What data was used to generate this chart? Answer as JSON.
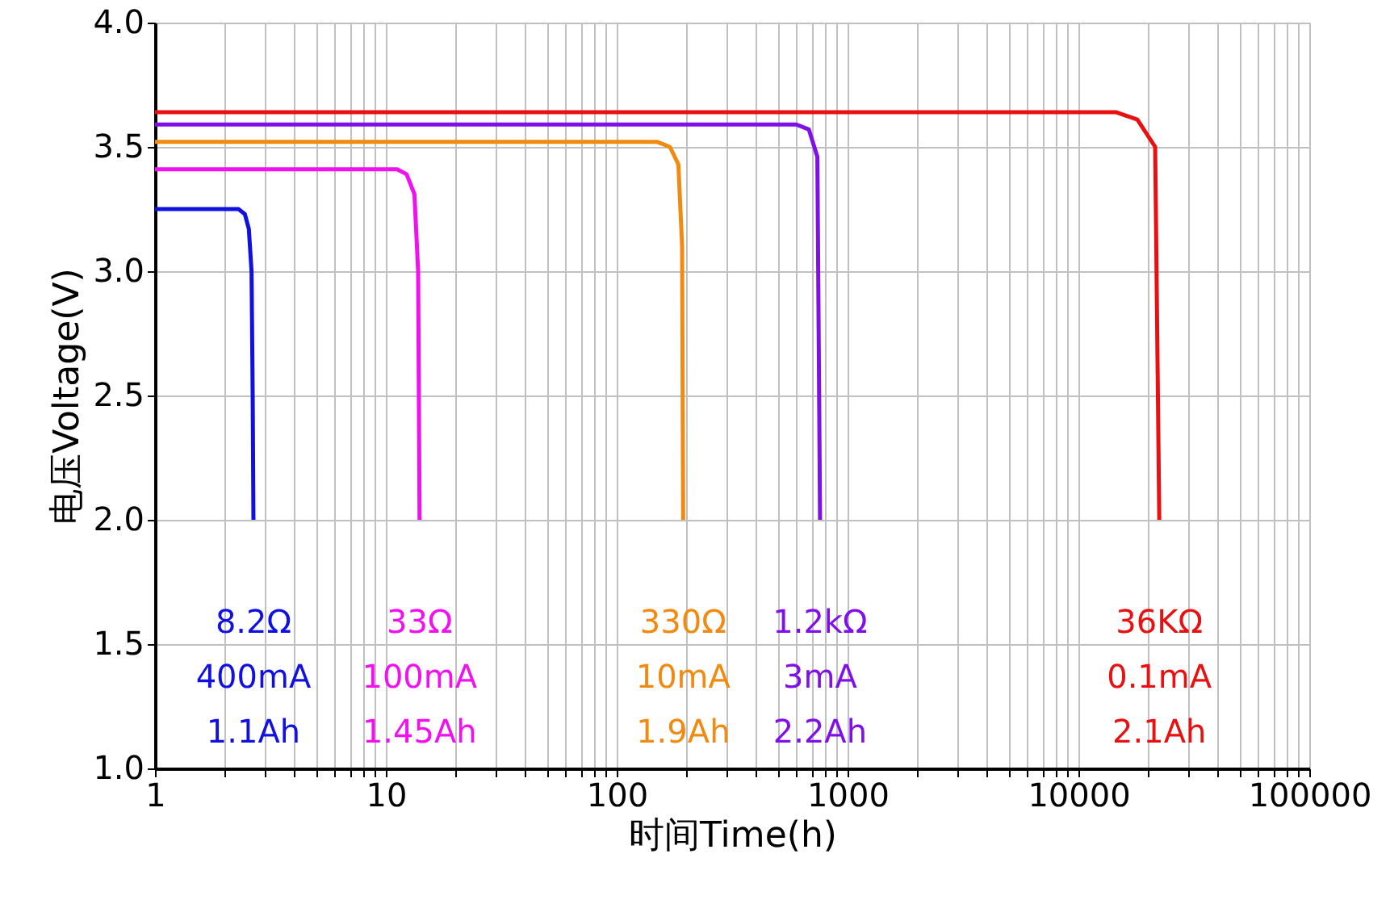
{
  "chart_data": {
    "type": "line",
    "xlabel": "时间Time(h)",
    "ylabel": "电压Voltage(V)",
    "log": "x",
    "xlim": [
      1,
      100000
    ],
    "ylim": [
      1.0,
      4.0
    ],
    "xticks": [
      1,
      {
        "value": 2,
        "label": null
      },
      {
        "value": 3,
        "label": null
      },
      {
        "value": 4,
        "label": null
      },
      {
        "value": 5,
        "label": null
      },
      {
        "value": 6,
        "label": null
      },
      {
        "value": 7,
        "label": null
      },
      {
        "value": 8,
        "label": null
      },
      {
        "value": 9,
        "label": null
      },
      10,
      {
        "value": 20,
        "label": null
      },
      {
        "value": 30,
        "label": null
      },
      {
        "value": 40,
        "label": null
      },
      {
        "value": 50,
        "label": null
      },
      {
        "value": 60,
        "label": null
      },
      {
        "value": 70,
        "label": null
      },
      {
        "value": 80,
        "label": null
      },
      {
        "value": 90,
        "label": null
      },
      100,
      {
        "value": 200,
        "label": null
      },
      {
        "value": 300,
        "label": null
      },
      {
        "value": 400,
        "label": null
      },
      {
        "value": 500,
        "label": null
      },
      {
        "value": 600,
        "label": null
      },
      {
        "value": 700,
        "label": null
      },
      {
        "value": 800,
        "label": null
      },
      {
        "value": 900,
        "label": null
      },
      1000,
      {
        "value": 2000,
        "label": null
      },
      {
        "value": 3000,
        "label": null
      },
      {
        "value": 4000,
        "label": null
      },
      {
        "value": 5000,
        "label": null
      },
      {
        "value": 6000,
        "label": null
      },
      {
        "value": 7000,
        "label": null
      },
      {
        "value": 8000,
        "label": null
      },
      {
        "value": 9000,
        "label": null
      },
      10000,
      {
        "value": 20000,
        "label": null
      },
      {
        "value": 30000,
        "label": null
      },
      {
        "value": 40000,
        "label": null
      },
      {
        "value": 50000,
        "label": null
      },
      {
        "value": 60000,
        "label": null
      },
      {
        "value": 70000,
        "label": null
      },
      {
        "value": 80000,
        "label": null
      },
      {
        "value": 90000,
        "label": null
      },
      100000
    ],
    "yticks": [
      {
        "value": 1,
        "label": "1.0"
      },
      {
        "value": 1.5,
        "label": "1.5"
      },
      {
        "value": 2,
        "label": "2.0"
      },
      {
        "value": 2.5,
        "label": "2.5"
      },
      {
        "value": 3,
        "label": "3.0"
      },
      {
        "value": 3.5,
        "label": "3.5"
      },
      {
        "value": 4,
        "label": "4.0"
      }
    ],
    "grid": true,
    "marker": "none",
    "line_style": "solid",
    "series": [
      {
        "color": "#1010e0",
        "x": [
          1,
          2.3,
          2.45,
          2.55,
          2.62,
          2.65,
          2.67
        ],
        "values": [
          3.25,
          3.25,
          3.23,
          3.17,
          3.0,
          2.5,
          2.0
        ]
      },
      {
        "color": "#f010f0",
        "x": [
          1,
          11.2,
          12.3,
          13.3,
          13.8,
          14.0
        ],
        "values": [
          3.41,
          3.41,
          3.39,
          3.31,
          3.0,
          2.0
        ]
      },
      {
        "color": "#f08a10",
        "x": [
          1,
          150,
          170,
          185,
          192,
          194
        ],
        "values": [
          3.52,
          3.52,
          3.5,
          3.43,
          3.1,
          2.0
        ]
      },
      {
        "color": "#8010e8",
        "x": [
          1,
          600,
          680,
          740,
          760
        ],
        "values": [
          3.59,
          3.59,
          3.57,
          3.46,
          2.0
        ]
      },
      {
        "color": "#e81010",
        "x": [
          1,
          14500,
          18000,
          21500,
          22400
        ],
        "values": [
          3.64,
          3.64,
          3.61,
          3.5,
          2.0
        ]
      }
    ],
    "annotations": [
      "8.2Ω\n400mA\n1.1Ah",
      "33Ω\n100mA\n1.45Ah",
      "330Ω\n10mA\n1.9Ah",
      "1.2kΩ\n3mA\n2.2Ah",
      "36KΩ\n0.1mA\n2.1Ah"
    ]
  }
}
